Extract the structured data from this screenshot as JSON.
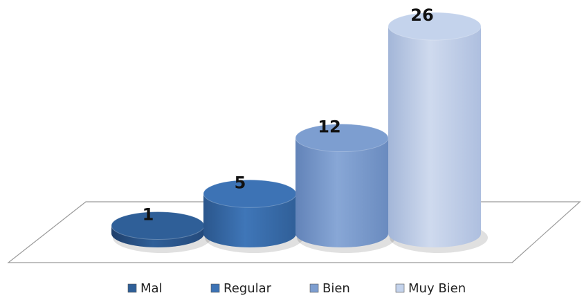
{
  "chart_data": {
    "type": "bar",
    "style": "3d-cylinder",
    "categories": [
      "Mal",
      "Regular",
      "Bien",
      "Muy Bien"
    ],
    "values": [
      1,
      5,
      12,
      26
    ],
    "colors": [
      "#2f5f98",
      "#3d73b5",
      "#7d9ed0",
      "#c4d3ec"
    ],
    "legend": {
      "position": "bottom",
      "entries": [
        "Mal",
        "Regular",
        "Bien",
        "Muy Bien"
      ]
    },
    "data_labels": [
      "1",
      "5",
      "12",
      "26"
    ],
    "grid": false,
    "ylim": [
      0,
      26
    ]
  }
}
